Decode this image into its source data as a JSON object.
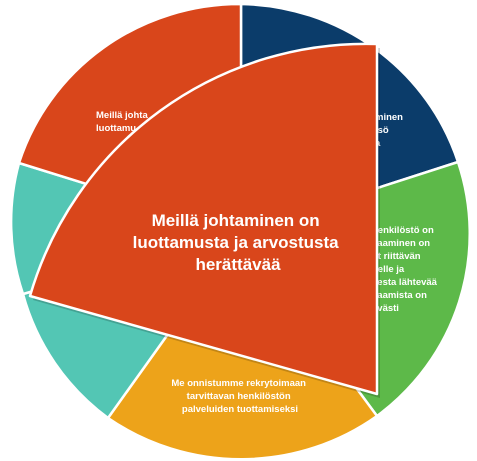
{
  "diagram": {
    "colors": {
      "red": "#D9461B",
      "navy": "#0B3C6A",
      "green": "#5DB949",
      "orange": "#EDA31A",
      "teal": "#53C6B4",
      "outline": "#ffffff"
    },
    "segments": [
      {
        "id": "top-left-red",
        "color": "red",
        "lines": [
          "Meillä johta",
          "luottamu"
        ]
      },
      {
        "id": "top-right-navy",
        "color": "navy",
        "lines": [
          "minen",
          "isö",
          "a"
        ]
      },
      {
        "id": "right-green",
        "color": "green",
        "lines": [
          "henkilöstö on",
          "saaminen on",
          "ut riittävän",
          "nelle ja",
          "eesta lähtevää",
          "saamista on",
          "ävästi"
        ]
      },
      {
        "id": "bottom-orange",
        "color": "orange",
        "lines": [
          "Me onnistumme rekrytoimaan",
          "tarvittavan henkilöstön",
          "palveluiden tuottamiseksi"
        ]
      },
      {
        "id": "left-teal-upper",
        "color": "teal",
        "lines": []
      },
      {
        "id": "left-teal-lower",
        "color": "teal",
        "lines": []
      }
    ],
    "exploded": {
      "color": "red",
      "lines": [
        "Meillä johtaminen on",
        "luottamusta ja arvostusta",
        "herättävää"
      ]
    }
  }
}
